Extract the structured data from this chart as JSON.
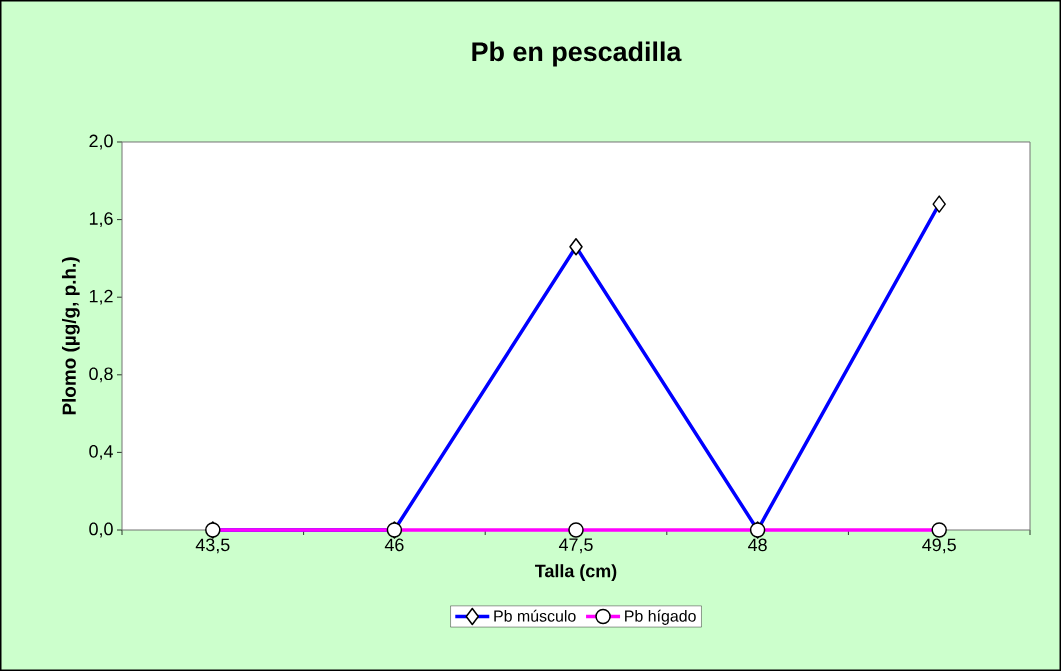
{
  "chart_data": {
    "type": "line",
    "title": "Pb en pescadilla",
    "xlabel": "Talla  (cm)",
    "ylabel": "Plomo (µg/g, p.h.)",
    "categories": [
      "43,5",
      "46",
      "47,5",
      "48",
      "49,5"
    ],
    "series": [
      {
        "name": "Pb músculo",
        "color": "#0000ff",
        "marker": "diamond",
        "values": [
          0,
          0,
          1.46,
          0,
          1.68
        ]
      },
      {
        "name": "Pb hígado",
        "color": "#ff00ff",
        "marker": "circle",
        "values": [
          0,
          0,
          0,
          0,
          0
        ]
      }
    ],
    "ylim": [
      0,
      2
    ],
    "yticks": [
      {
        "value": 0,
        "label": "0,0"
      },
      {
        "value": 0.4,
        "label": "0,4"
      },
      {
        "value": 0.8,
        "label": "0,8"
      },
      {
        "value": 1.2,
        "label": "1,2"
      },
      {
        "value": 1.6,
        "label": "1,6"
      },
      {
        "value": 2,
        "label": "2,0"
      }
    ],
    "grid": false,
    "legend": "bottom"
  }
}
